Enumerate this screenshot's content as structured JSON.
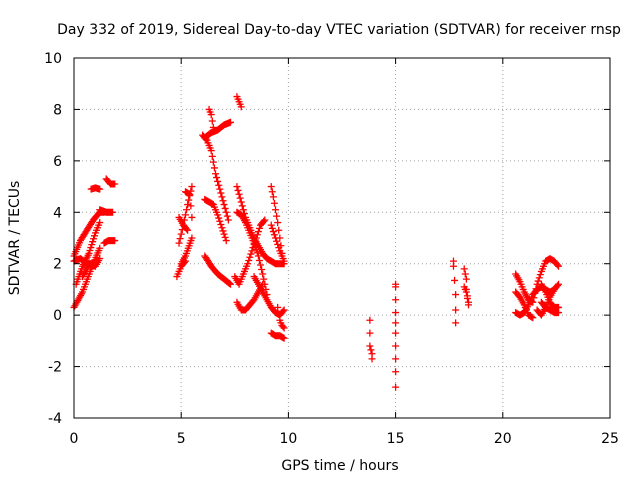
{
  "chart_data": {
    "type": "scatter",
    "title": "Day 332 of 2019, Sidereal Day-to-day VTEC variation (SDTVAR) for receiver rnsp",
    "xlabel": "GPS time / hours",
    "ylabel": "SDTVAR / TECUs",
    "xlim": [
      0,
      25
    ],
    "ylim": [
      -4,
      10
    ],
    "xticks": [
      0,
      5,
      10,
      15,
      20,
      25
    ],
    "xtick_labels": [
      "0",
      "5",
      "10",
      "15",
      "20",
      "25"
    ],
    "yticks": [
      -4,
      -2,
      0,
      2,
      4,
      6,
      8,
      10
    ],
    "ytick_labels": [
      "-4",
      "-2",
      "0",
      "2",
      "4",
      "6",
      "8",
      "10"
    ],
    "grid": true,
    "marker": "+",
    "color": "#ff0000",
    "tracks": [
      {
        "x": [
          0.0,
          0.3,
          0.6,
          0.9,
          1.2,
          1.4
        ],
        "y": [
          2.3,
          2.9,
          3.3,
          3.7,
          4.0,
          4.0
        ]
      },
      {
        "x": [
          0.0,
          0.4,
          0.8,
          1.2
        ],
        "y": [
          0.3,
          0.9,
          1.8,
          2.6
        ]
      },
      {
        "x": [
          0.1,
          0.4,
          0.7,
          1.0,
          1.2
        ],
        "y": [
          1.2,
          1.9,
          2.4,
          3.2,
          3.6
        ]
      },
      {
        "x": [
          0.0,
          0.3,
          0.6,
          0.9
        ],
        "y": [
          2.1,
          2.2,
          2.0,
          2.0
        ]
      },
      {
        "x": [
          0.4,
          0.7,
          1.0,
          1.2
        ],
        "y": [
          1.5,
          2.0,
          1.9,
          2.2
        ]
      },
      {
        "x": [
          1.4,
          1.6,
          1.9
        ],
        "y": [
          2.8,
          2.9,
          2.9
        ]
      },
      {
        "x": [
          0.8,
          1.0,
          1.2
        ],
        "y": [
          4.9,
          4.95,
          4.9
        ]
      },
      {
        "x": [
          1.5,
          1.7,
          1.9
        ],
        "y": [
          5.3,
          5.1,
          5.1
        ]
      },
      {
        "x": [
          1.2,
          1.5,
          1.8
        ],
        "y": [
          4.1,
          4.0,
          4.0
        ]
      },
      {
        "x": [
          4.8,
          5.0,
          5.2
        ],
        "y": [
          1.5,
          1.9,
          2.1
        ]
      },
      {
        "x": [
          4.9,
          5.1,
          5.3,
          5.5
        ],
        "y": [
          2.8,
          3.5,
          4.3,
          5.0
        ]
      },
      {
        "x": [
          4.9,
          5.1,
          5.3
        ],
        "y": [
          3.8,
          3.5,
          3.3
        ]
      },
      {
        "x": [
          5.2,
          5.4,
          5.5
        ],
        "y": [
          4.8,
          4.7,
          3.8
        ]
      },
      {
        "x": [
          5.0,
          5.2,
          5.5
        ],
        "y": [
          2.0,
          2.3,
          3.0
        ]
      },
      {
        "x": [
          6.0,
          6.2,
          6.4,
          6.6,
          6.8,
          7.0,
          7.2
        ],
        "y": [
          7.0,
          6.8,
          6.4,
          5.5,
          4.9,
          4.3,
          3.7
        ]
      },
      {
        "x": [
          6.3,
          6.4,
          6.5
        ],
        "y": [
          8.0,
          7.8,
          7.3
        ]
      },
      {
        "x": [
          6.1,
          6.4,
          6.7,
          7.0,
          7.3
        ],
        "y": [
          6.9,
          7.1,
          7.2,
          7.4,
          7.5
        ]
      },
      {
        "x": [
          6.1,
          6.3,
          6.5,
          6.7,
          6.9,
          7.1
        ],
        "y": [
          4.5,
          4.4,
          4.3,
          3.9,
          3.4,
          2.9
        ]
      },
      {
        "x": [
          6.1,
          6.4,
          6.7,
          7.0,
          7.3
        ],
        "y": [
          2.3,
          1.9,
          1.6,
          1.4,
          1.2
        ]
      },
      {
        "x": [
          7.6,
          7.7,
          7.8
        ],
        "y": [
          8.5,
          8.3,
          8.1
        ]
      },
      {
        "x": [
          7.6,
          7.8,
          8.0,
          8.2,
          8.4,
          8.6,
          8.8,
          9.0,
          9.2,
          9.4,
          9.6,
          9.8
        ],
        "y": [
          5.0,
          4.4,
          3.8,
          3.4,
          3.0,
          2.7,
          2.4,
          2.2,
          2.1,
          2.0,
          2.0,
          2.0
        ]
      },
      {
        "x": [
          7.6,
          7.8,
          8.0,
          8.2,
          8.4,
          8.6,
          8.8,
          9.0
        ],
        "y": [
          4.0,
          3.9,
          3.6,
          3.2,
          2.8,
          2.3,
          1.6,
          0.8
        ]
      },
      {
        "x": [
          7.5,
          7.7,
          7.9,
          8.1,
          8.3,
          8.5,
          8.7,
          8.9
        ],
        "y": [
          1.5,
          1.2,
          1.6,
          2.0,
          2.5,
          3.0,
          3.5,
          3.7
        ]
      },
      {
        "x": [
          7.6,
          7.8,
          8.0,
          8.2,
          8.4,
          8.6,
          8.8
        ],
        "y": [
          0.5,
          0.2,
          0.2,
          0.4,
          0.6,
          0.9,
          1.2
        ]
      },
      {
        "x": [
          8.4,
          8.6,
          8.8,
          9.0,
          9.2,
          9.4,
          9.6,
          9.8
        ],
        "y": [
          1.5,
          1.2,
          0.9,
          0.6,
          0.3,
          0.1,
          0.0,
          0.2
        ]
      },
      {
        "x": [
          9.2,
          9.4,
          9.6,
          9.8
        ],
        "y": [
          -0.7,
          -0.8,
          -0.8,
          -0.9
        ]
      },
      {
        "x": [
          9.5,
          9.6,
          9.7,
          9.8
        ],
        "y": [
          0.3,
          -0.2,
          -0.4,
          -0.5
        ]
      },
      {
        "x": [
          9.2,
          9.3,
          9.4,
          9.5,
          9.6,
          9.7
        ],
        "y": [
          5.0,
          4.6,
          4.1,
          3.6,
          3.0,
          2.4
        ]
      },
      {
        "x": [
          9.2,
          9.4,
          9.6,
          9.8
        ],
        "y": [
          3.5,
          3.0,
          2.5,
          2.1
        ]
      },
      {
        "x": [
          13.8,
          13.8,
          13.9,
          13.9
        ],
        "y": [
          -0.2,
          -1.2,
          -1.5,
          -1.7
        ]
      },
      {
        "x": [
          15.0,
          15.0,
          15.0,
          15.0,
          15.0,
          15.0,
          15.0
        ],
        "y": [
          1.2,
          1.1,
          0.1,
          -0.3,
          -0.7,
          -2.2,
          -2.8
        ]
      },
      {
        "x": [
          17.7,
          17.7,
          17.8,
          17.8,
          17.8
        ],
        "y": [
          2.1,
          1.9,
          0.8,
          0.2,
          -0.3
        ]
      },
      {
        "x": [
          18.2,
          18.3,
          18.3,
          18.4
        ],
        "y": [
          1.8,
          1.4,
          1.0,
          0.5
        ]
      },
      {
        "x": [
          18.2,
          18.3,
          18.4
        ],
        "y": [
          1.1,
          0.9,
          0.4
        ]
      },
      {
        "x": [
          20.6,
          20.8,
          21.0,
          21.2,
          21.4,
          21.6,
          21.8,
          22.0,
          22.2,
          22.4,
          22.6
        ],
        "y": [
          1.6,
          1.3,
          0.9,
          0.6,
          0.5,
          1.2,
          1.7,
          2.1,
          2.2,
          2.1,
          1.9
        ]
      },
      {
        "x": [
          20.6,
          20.8,
          21.0,
          21.2,
          21.4,
          21.6,
          21.8,
          22.0,
          22.2,
          22.4
        ],
        "y": [
          0.1,
          0.0,
          0.1,
          0.4,
          0.8,
          1.0,
          1.1,
          1.0,
          0.9,
          1.0
        ]
      },
      {
        "x": [
          20.6,
          20.8,
          21.0,
          21.2,
          21.4
        ],
        "y": [
          0.9,
          0.7,
          0.4,
          0.0,
          -0.1
        ]
      },
      {
        "x": [
          21.6,
          21.8,
          22.0,
          22.2,
          22.4,
          22.6
        ],
        "y": [
          0.2,
          0.0,
          0.3,
          0.7,
          1.0,
          1.2
        ]
      },
      {
        "x": [
          21.8,
          22.0,
          22.2,
          22.4,
          22.6
        ],
        "y": [
          0.5,
          0.3,
          0.2,
          0.1,
          0.1
        ]
      },
      {
        "x": [
          21.8,
          22.0,
          22.2,
          22.4,
          22.6
        ],
        "y": [
          1.2,
          0.9,
          0.5,
          0.3,
          0.3
        ]
      }
    ]
  }
}
